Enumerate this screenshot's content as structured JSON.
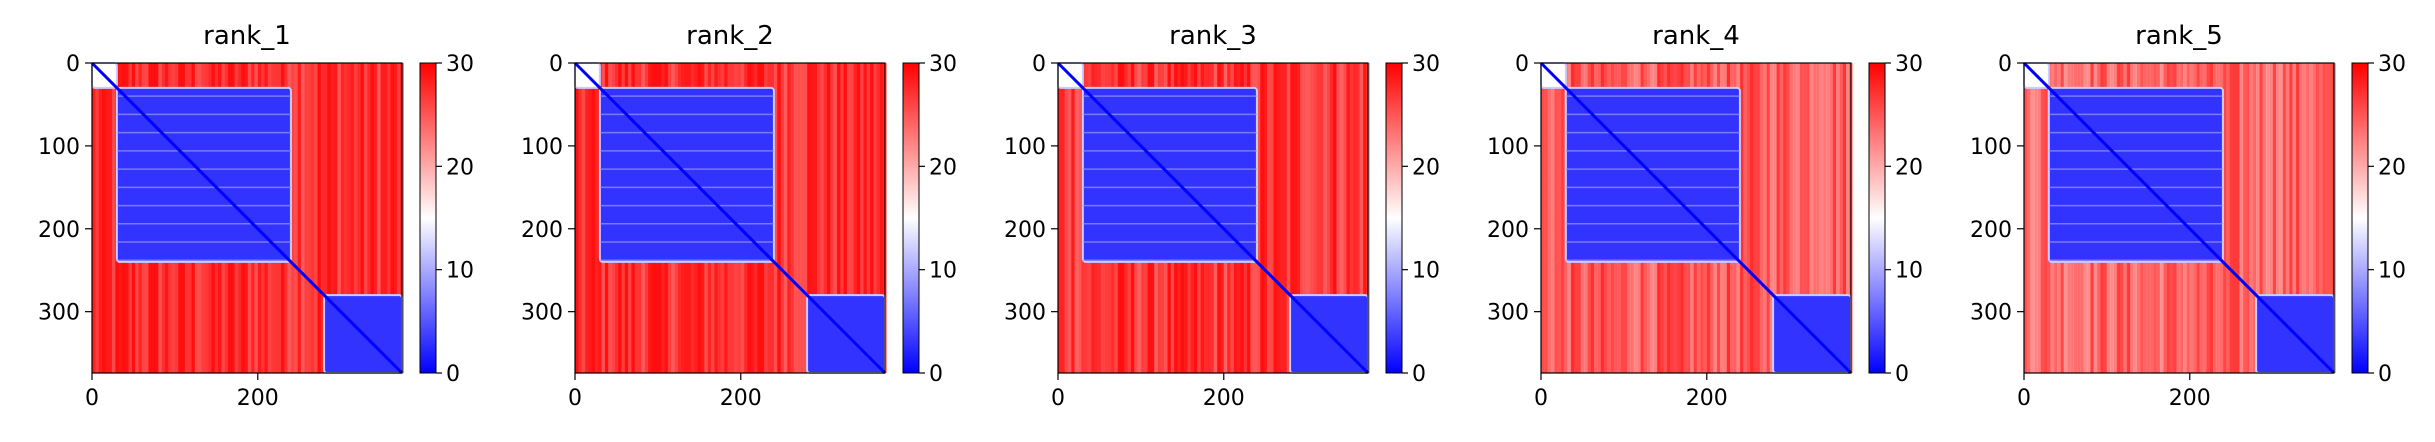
{
  "figure": {
    "panel_count": 5
  },
  "chart_data": [
    {
      "type": "heatmap",
      "title": "rank_1",
      "x_range": [
        0,
        374
      ],
      "y_range": [
        0,
        374
      ],
      "x_ticks": [
        0,
        200
      ],
      "y_ticks": [
        0,
        100,
        200,
        300
      ],
      "colorbar": {
        "min": 0,
        "max": 30,
        "ticks": [
          0,
          10,
          20,
          30
        ],
        "colormap": "bwr",
        "colors": [
          "#0000ff",
          "#ffffff",
          "#ff0000"
        ]
      },
      "domains": [
        [
          0,
          30
        ],
        [
          30,
          240
        ],
        [
          240,
          280
        ],
        [
          280,
          374
        ]
      ],
      "blocks": [
        {
          "rows": [
            0,
            30
          ],
          "cols": [
            0,
            30
          ],
          "value": 15
        },
        {
          "rows": [
            30,
            240
          ],
          "cols": [
            30,
            240
          ],
          "value": 3
        },
        {
          "rows": [
            280,
            374
          ],
          "cols": [
            280,
            374
          ],
          "value": 3
        }
      ],
      "background_value": 28,
      "noisy_offdiagonal_value": 25
    },
    {
      "type": "heatmap",
      "title": "rank_2",
      "x_range": [
        0,
        374
      ],
      "y_range": [
        0,
        374
      ],
      "x_ticks": [
        0,
        200
      ],
      "y_ticks": [
        0,
        100,
        200,
        300
      ],
      "colorbar": {
        "min": 0,
        "max": 30,
        "ticks": [
          0,
          10,
          20,
          30
        ],
        "colormap": "bwr",
        "colors": [
          "#0000ff",
          "#ffffff",
          "#ff0000"
        ]
      },
      "domains": [
        [
          0,
          30
        ],
        [
          30,
          240
        ],
        [
          240,
          280
        ],
        [
          280,
          374
        ]
      ],
      "blocks": [
        {
          "rows": [
            0,
            30
          ],
          "cols": [
            0,
            30
          ],
          "value": 15
        },
        {
          "rows": [
            30,
            240
          ],
          "cols": [
            30,
            240
          ],
          "value": 3
        },
        {
          "rows": [
            280,
            374
          ],
          "cols": [
            280,
            374
          ],
          "value": 3
        }
      ],
      "background_value": 28,
      "noisy_offdiagonal_value": 25
    },
    {
      "type": "heatmap",
      "title": "rank_3",
      "x_range": [
        0,
        374
      ],
      "y_range": [
        0,
        374
      ],
      "x_ticks": [
        0,
        200
      ],
      "y_ticks": [
        0,
        100,
        200,
        300
      ],
      "colorbar": {
        "min": 0,
        "max": 30,
        "ticks": [
          0,
          10,
          20,
          30
        ],
        "colormap": "bwr",
        "colors": [
          "#0000ff",
          "#ffffff",
          "#ff0000"
        ]
      },
      "domains": [
        [
          0,
          30
        ],
        [
          30,
          240
        ],
        [
          240,
          280
        ],
        [
          280,
          374
        ]
      ],
      "blocks": [
        {
          "rows": [
            0,
            30
          ],
          "cols": [
            0,
            30
          ],
          "value": 15
        },
        {
          "rows": [
            30,
            240
          ],
          "cols": [
            30,
            240
          ],
          "value": 3
        },
        {
          "rows": [
            280,
            374
          ],
          "cols": [
            280,
            374
          ],
          "value": 3
        }
      ],
      "background_value": 28,
      "noisy_offdiagonal_value": 24
    },
    {
      "type": "heatmap",
      "title": "rank_4",
      "x_range": [
        0,
        374
      ],
      "y_range": [
        0,
        374
      ],
      "x_ticks": [
        0,
        200
      ],
      "y_ticks": [
        0,
        100,
        200,
        300
      ],
      "colorbar": {
        "min": 0,
        "max": 30,
        "ticks": [
          0,
          10,
          20,
          30
        ],
        "colormap": "bwr",
        "colors": [
          "#0000ff",
          "#ffffff",
          "#ff0000"
        ]
      },
      "domains": [
        [
          0,
          30
        ],
        [
          30,
          240
        ],
        [
          240,
          280
        ],
        [
          280,
          374
        ]
      ],
      "blocks": [
        {
          "rows": [
            0,
            30
          ],
          "cols": [
            0,
            30
          ],
          "value": 15
        },
        {
          "rows": [
            30,
            240
          ],
          "cols": [
            30,
            240
          ],
          "value": 3
        },
        {
          "rows": [
            280,
            374
          ],
          "cols": [
            280,
            374
          ],
          "value": 3
        }
      ],
      "background_value": 28,
      "noisy_offdiagonal_value": 20
    },
    {
      "type": "heatmap",
      "title": "rank_5",
      "x_range": [
        0,
        374
      ],
      "y_range": [
        0,
        374
      ],
      "x_ticks": [
        0,
        200
      ],
      "y_ticks": [
        0,
        100,
        200,
        300
      ],
      "colorbar": {
        "min": 0,
        "max": 30,
        "ticks": [
          0,
          10,
          20,
          30
        ],
        "colormap": "bwr",
        "colors": [
          "#0000ff",
          "#ffffff",
          "#ff0000"
        ]
      },
      "domains": [
        [
          0,
          30
        ],
        [
          30,
          240
        ],
        [
          240,
          280
        ],
        [
          280,
          374
        ]
      ],
      "blocks": [
        {
          "rows": [
            0,
            30
          ],
          "cols": [
            0,
            30
          ],
          "value": 15
        },
        {
          "rows": [
            30,
            240
          ],
          "cols": [
            30,
            240
          ],
          "value": 3
        },
        {
          "rows": [
            280,
            374
          ],
          "cols": [
            280,
            374
          ],
          "value": 3
        }
      ],
      "background_value": 28,
      "noisy_offdiagonal_value": 19
    }
  ]
}
